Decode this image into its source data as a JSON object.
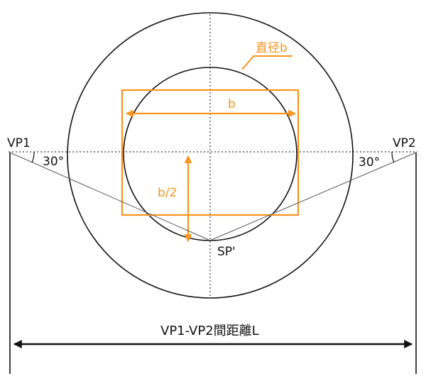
{
  "labels": {
    "vp1": "VP1",
    "vp2": "VP2",
    "angle_left": "30°",
    "angle_right": "30°",
    "diameter_label": "直径b",
    "width_label": "b",
    "half_label": "b/2",
    "sp_label": "SP'",
    "distance_label": "VP1-VP2間距離L"
  },
  "colors": {
    "accent": "#F7941D",
    "line": "#111111",
    "thin_line": "#555555"
  }
}
